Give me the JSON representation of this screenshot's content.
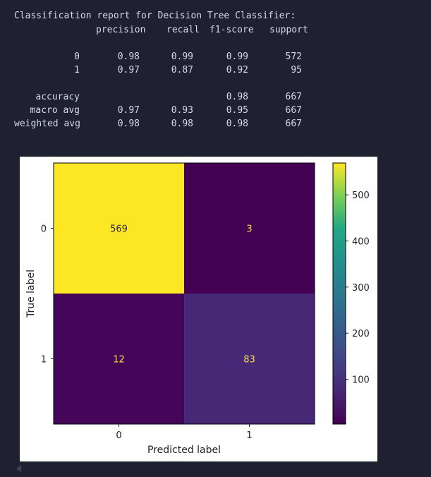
{
  "report": {
    "title": "Classification report for Decision Tree Classifier:",
    "headers": [
      "precision",
      "recall",
      "f1-score",
      "support"
    ],
    "rows": [
      {
        "label": "0",
        "precision": "0.98",
        "recall": "0.99",
        "f1": "0.99",
        "support": "572"
      },
      {
        "label": "1",
        "precision": "0.97",
        "recall": "0.87",
        "f1": "0.92",
        "support": "95"
      },
      {
        "label": "accuracy",
        "precision": "",
        "recall": "",
        "f1": "0.98",
        "support": "667"
      },
      {
        "label": "macro avg",
        "precision": "0.97",
        "recall": "0.93",
        "f1": "0.95",
        "support": "667"
      },
      {
        "label": "weighted avg",
        "precision": "0.98",
        "recall": "0.98",
        "f1": "0.98",
        "support": "667"
      }
    ]
  },
  "chart_data": {
    "type": "heatmap",
    "title": "",
    "xlabel": "Predicted label",
    "ylabel": "True label",
    "x_categories": [
      "0",
      "1"
    ],
    "y_categories": [
      "0",
      "1"
    ],
    "matrix": [
      [
        569,
        3
      ],
      [
        12,
        83
      ]
    ],
    "colormap": "viridis",
    "colorbar": {
      "ticks": [
        "100",
        "200",
        "300",
        "400",
        "500"
      ],
      "range": [
        3,
        569
      ]
    },
    "grid": false
  },
  "colors": {
    "background": "#1f2130",
    "report_text": "#d6d9e6",
    "cell_high": "#fde725",
    "cell_low": "#440154",
    "cell_mid": "#46327e",
    "text_on_dark": "#f5e14a",
    "text_on_light": "#2a1f45"
  }
}
